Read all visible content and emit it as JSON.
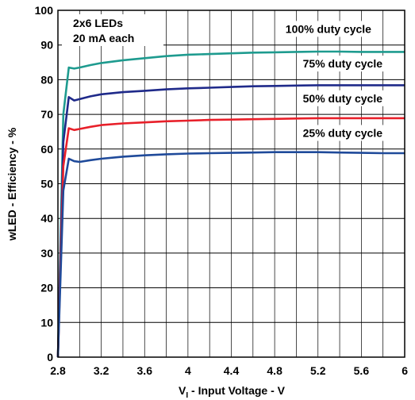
{
  "chart_data": {
    "type": "line",
    "xlabel_main": "V",
    "xlabel_sub": "I",
    "xlabel_rest": " - Input Voltage - V",
    "ylabel": "wLED - Efficiency - %",
    "xlim": [
      2.8,
      6
    ],
    "ylim": [
      0,
      100
    ],
    "x_ticks": [
      "2.8",
      "3.2",
      "3.6",
      "4",
      "4.4",
      "4.8",
      "5.2",
      "5.6",
      "6"
    ],
    "y_ticks": [
      "0",
      "10",
      "20",
      "30",
      "40",
      "50",
      "60",
      "70",
      "80",
      "90",
      "100"
    ],
    "grid": true,
    "annotations": {
      "box_line1": "2x6 LEDs",
      "box_line2": "20 mA each"
    },
    "series": [
      {
        "name": "100% duty cycle",
        "color": "#1e9b8f",
        "x": [
          2.8,
          2.85,
          2.9,
          2.95,
          3.0,
          3.1,
          3.2,
          3.4,
          3.6,
          3.8,
          4.0,
          4.2,
          4.4,
          4.6,
          4.8,
          5.0,
          5.2,
          5.4,
          5.6,
          5.8,
          6.0
        ],
        "y": [
          0,
          70,
          83.5,
          83.2,
          83.5,
          84.2,
          84.8,
          85.6,
          86.2,
          86.8,
          87.2,
          87.4,
          87.6,
          87.8,
          87.9,
          88.0,
          88.1,
          88.1,
          88.0,
          88.0,
          88.0
        ]
      },
      {
        "name": "75% duty cycle",
        "color": "#1f2a8a",
        "x": [
          2.8,
          2.85,
          2.9,
          2.95,
          3.0,
          3.1,
          3.2,
          3.4,
          3.6,
          3.8,
          4.0,
          4.2,
          4.4,
          4.6,
          4.8,
          5.0,
          5.2,
          5.4,
          5.6,
          5.8,
          6.0
        ],
        "y": [
          0,
          62,
          75.0,
          74.0,
          74.4,
          75.2,
          75.8,
          76.4,
          76.8,
          77.2,
          77.5,
          77.7,
          77.9,
          78.1,
          78.2,
          78.3,
          78.4,
          78.4,
          78.4,
          78.4,
          78.4
        ]
      },
      {
        "name": "50% duty cycle",
        "color": "#e8202a",
        "x": [
          2.8,
          2.85,
          2.9,
          2.95,
          3.0,
          3.1,
          3.2,
          3.4,
          3.6,
          3.8,
          4.0,
          4.2,
          4.4,
          4.6,
          4.8,
          5.0,
          5.2,
          5.4,
          5.6,
          5.8,
          6.0
        ],
        "y": [
          0,
          55,
          66.0,
          65.5,
          65.8,
          66.4,
          66.9,
          67.4,
          67.7,
          68.0,
          68.2,
          68.4,
          68.5,
          68.6,
          68.7,
          68.8,
          68.9,
          68.9,
          68.9,
          68.9,
          68.9
        ]
      },
      {
        "name": "25% duty cycle",
        "color": "#1f4a9a",
        "x": [
          2.8,
          2.85,
          2.9,
          2.95,
          3.0,
          3.1,
          3.2,
          3.4,
          3.6,
          3.8,
          4.0,
          4.2,
          4.4,
          4.6,
          4.8,
          5.0,
          5.2,
          5.4,
          5.6,
          5.8,
          6.0
        ],
        "y": [
          0,
          48,
          57.2,
          56.5,
          56.3,
          56.8,
          57.2,
          57.8,
          58.2,
          58.5,
          58.7,
          58.8,
          58.9,
          59.0,
          59.1,
          59.1,
          59.1,
          59.0,
          58.9,
          58.8,
          58.8
        ]
      }
    ]
  }
}
